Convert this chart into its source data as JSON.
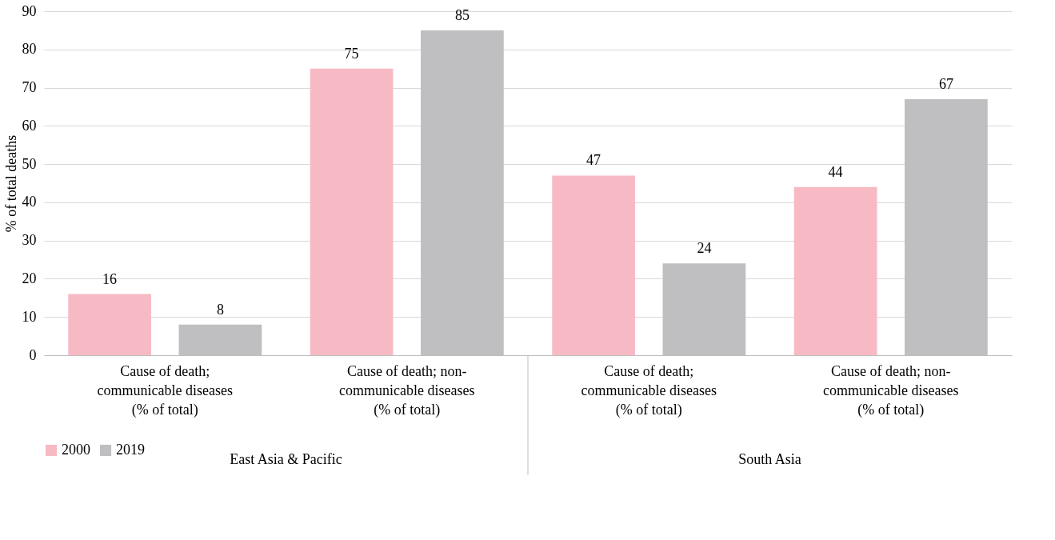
{
  "chart_data": {
    "type": "bar",
    "categories": [
      "Cause of death; communicable diseases (% of total)",
      "Cause of death; non-communicable diseases (% of total)",
      "Cause of death; communicable diseases (% of total)",
      "Cause of death; non-communicable diseases (% of total)"
    ],
    "series": [
      {
        "name": "2000",
        "color": "#f7bac4",
        "values": [
          16,
          75,
          47,
          44
        ]
      },
      {
        "name": "2019",
        "color": "#bfbfc1",
        "values": [
          8,
          85,
          24,
          67
        ]
      }
    ],
    "ylabel": "% of total deaths",
    "ylim": [
      0,
      90
    ],
    "yticks": [
      0,
      10,
      20,
      30,
      40,
      50,
      60,
      70,
      80,
      90
    ],
    "annotations": [
      "East Asia & Pacific",
      "South Asia"
    ],
    "data_labels": true,
    "grid": "y",
    "legend": "bottom"
  }
}
